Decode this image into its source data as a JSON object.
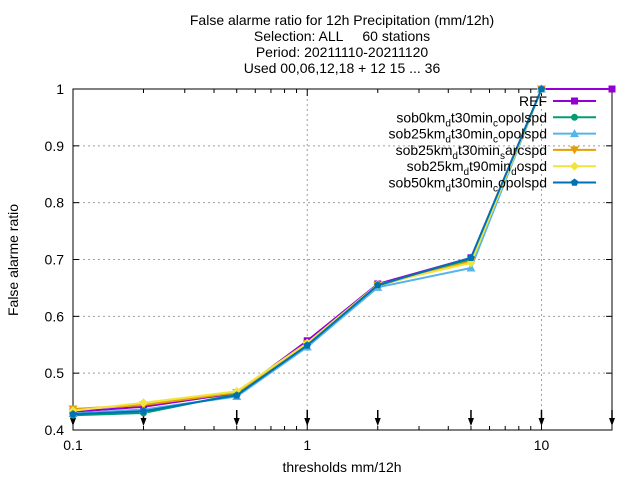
{
  "chart_data": {
    "type": "line",
    "title_lines": [
      "False alarme ratio  for 12h Precipitation (mm/12h)",
      "Selection: ALL     60 stations",
      "Period: 20211110-20211120",
      "Used 00,06,12,18 + 12 15 ... 36"
    ],
    "xlabel": "thresholds mm/12h",
    "ylabel": "False alarme ratio",
    "x_scale": "log",
    "xlim": [
      0.1,
      20
    ],
    "ylim": [
      0.4,
      1.0
    ],
    "x_ticks": [
      {
        "value": 0.1,
        "label": "0.1"
      },
      {
        "value": 1,
        "label": "1"
      },
      {
        "value": 10,
        "label": "10"
      }
    ],
    "y_ticks": [
      {
        "value": 0.4,
        "label": "0.4"
      },
      {
        "value": 0.5,
        "label": "0.5"
      },
      {
        "value": 0.6,
        "label": "0.6"
      },
      {
        "value": 0.7,
        "label": "0.7"
      },
      {
        "value": 0.8,
        "label": "0.8"
      },
      {
        "value": 0.9,
        "label": "0.9"
      },
      {
        "value": 1.0,
        "label": "1"
      }
    ],
    "grid": true,
    "legend_position": "top-right",
    "x": [
      0.1,
      0.2,
      0.5,
      1,
      2,
      5,
      10,
      20
    ],
    "series": [
      {
        "name": "REF",
        "label_parts": [
          {
            "t": "REF"
          }
        ],
        "color": "#9400d3",
        "marker": "square",
        "values": [
          0.432,
          0.441,
          0.465,
          0.557,
          0.657,
          0.703,
          1.0,
          1.0
        ]
      },
      {
        "name": "sob0km_d t30min_c opolspd",
        "label_parts": [
          {
            "t": "sob0km"
          },
          {
            "t": "d",
            "sub": true
          },
          {
            "t": "t30min"
          },
          {
            "t": "c",
            "sub": true
          },
          {
            "t": "opolspd"
          }
        ],
        "color": "#009e73",
        "marker": "circle",
        "values": [
          0.426,
          0.43,
          0.463,
          0.551,
          0.654,
          0.7,
          1.0,
          null
        ]
      },
      {
        "name": "sob25km_d t30min_c opolspd",
        "label_parts": [
          {
            "t": "sob25km"
          },
          {
            "t": "d",
            "sub": true
          },
          {
            "t": "t30min"
          },
          {
            "t": "c",
            "sub": true
          },
          {
            "t": "opolspd"
          }
        ],
        "color": "#56b4e9",
        "marker": "triangle-up",
        "values": [
          0.429,
          0.436,
          0.459,
          0.546,
          0.651,
          0.685,
          1.0,
          null
        ]
      },
      {
        "name": "sob25km_d t30min_s arcspd",
        "label_parts": [
          {
            "t": "sob25km"
          },
          {
            "t": "d",
            "sub": true
          },
          {
            "t": "t30min"
          },
          {
            "t": "s",
            "sub": true
          },
          {
            "t": "arcspd"
          }
        ],
        "color": "#e69f00",
        "marker": "triangle-down",
        "values": [
          0.437,
          0.444,
          0.466,
          0.552,
          0.655,
          0.697,
          1.0,
          null
        ]
      },
      {
        "name": "sob25km_d t90min_d ospd",
        "label_parts": [
          {
            "t": "sob25km"
          },
          {
            "t": "d",
            "sub": true
          },
          {
            "t": "t90min"
          },
          {
            "t": "d",
            "sub": true
          },
          {
            "t": "ospd"
          }
        ],
        "color": "#f0e442",
        "marker": "diamond",
        "values": [
          0.434,
          0.448,
          0.468,
          0.553,
          0.656,
          0.694,
          1.0,
          null
        ]
      },
      {
        "name": "sob50km_d t30min_c opolspd",
        "label_parts": [
          {
            "t": "sob50km"
          },
          {
            "t": "d",
            "sub": true
          },
          {
            "t": "t30min"
          },
          {
            "t": "c",
            "sub": true
          },
          {
            "t": "opolspd"
          }
        ],
        "color": "#0072b2",
        "marker": "pentagon",
        "values": [
          0.428,
          0.433,
          0.461,
          0.549,
          0.655,
          0.703,
          1.0,
          null
        ]
      }
    ],
    "bottom_markers_x": [
      0.1,
      0.2,
      0.5,
      1,
      2,
      5,
      10,
      20
    ]
  }
}
